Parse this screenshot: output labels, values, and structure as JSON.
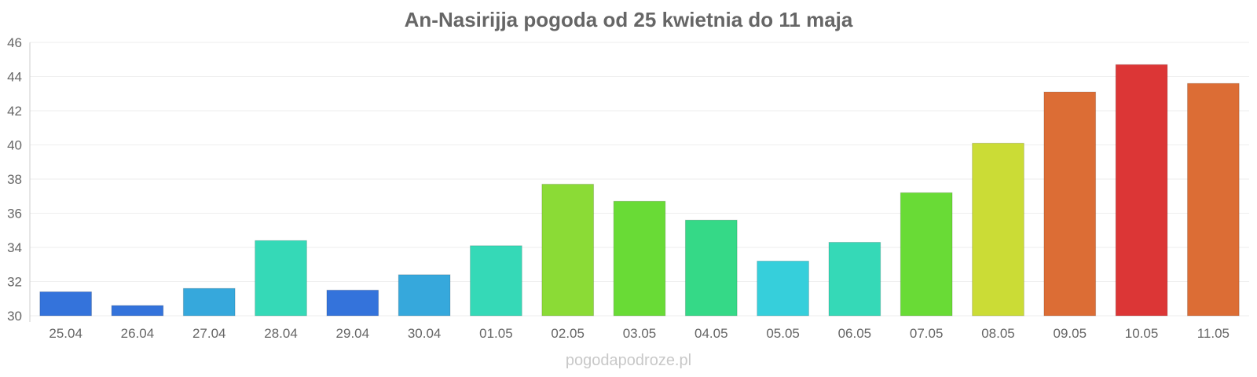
{
  "chart_data": {
    "type": "bar",
    "title": "An-Nasirijja pogoda od 25 kwietnia do 11 maja",
    "xlabel": "",
    "ylabel": "",
    "ylim": [
      30,
      46
    ],
    "yticks": [
      30,
      32,
      34,
      36,
      38,
      40,
      42,
      44,
      46
    ],
    "grid": true,
    "categories": [
      "25.04",
      "26.04",
      "27.04",
      "28.04",
      "29.04",
      "30.04",
      "01.05",
      "02.05",
      "03.05",
      "04.05",
      "05.05",
      "06.05",
      "07.05",
      "08.05",
      "09.05",
      "10.05",
      "11.05"
    ],
    "values": [
      31.4,
      30.6,
      31.6,
      34.4,
      31.5,
      32.4,
      34.1,
      37.7,
      36.7,
      35.6,
      33.2,
      34.3,
      37.2,
      40.1,
      43.1,
      44.7,
      43.6
    ],
    "colors": [
      "#3473db",
      "#3473db",
      "#36a8dc",
      "#35d9b7",
      "#3473db",
      "#36a8dc",
      "#35d9b7",
      "#8bdb36",
      "#69db36",
      "#35d987",
      "#36cfdb",
      "#35d9b7",
      "#69db36",
      "#cbdc36",
      "#dc6d35",
      "#dc3636",
      "#dc6d35"
    ]
  },
  "footer": {
    "watermark": "pogodapodroze.pl"
  }
}
